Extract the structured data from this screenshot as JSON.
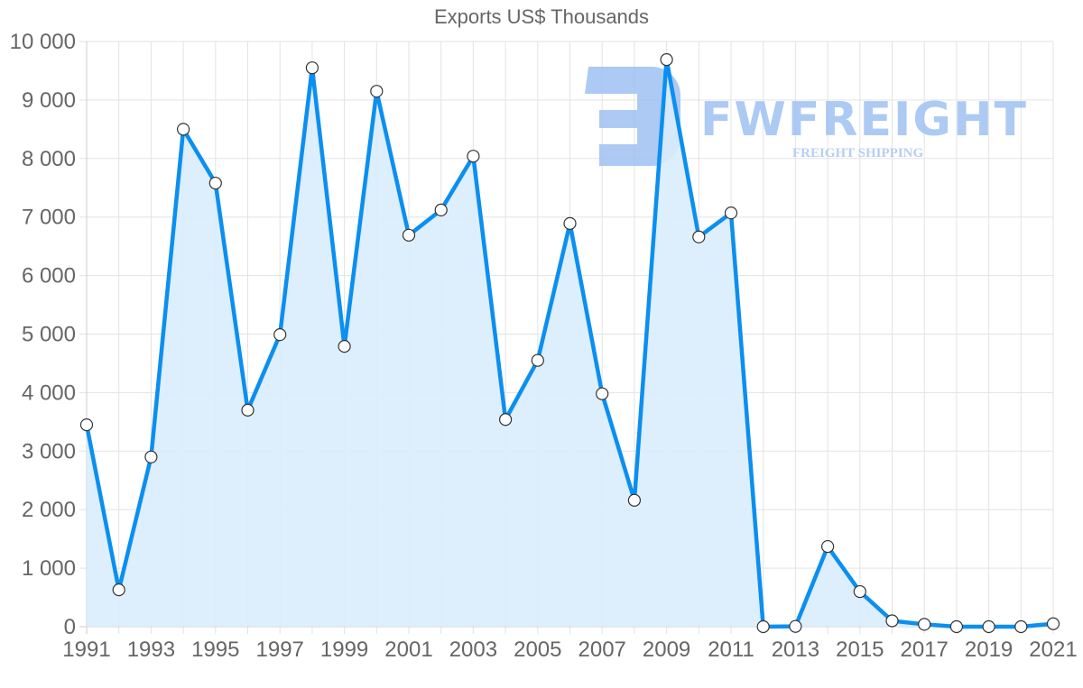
{
  "chart_data": {
    "type": "line",
    "title": "Exports US$ Thousands",
    "xlabel": "",
    "ylabel": "",
    "ylim": [
      0,
      10000
    ],
    "y_ticks": [
      "0",
      "1 000",
      "2 000",
      "3 000",
      "4 000",
      "5 000",
      "6 000",
      "7 000",
      "8 000",
      "9 000",
      "10 000"
    ],
    "x_tick_labels": [
      "1991",
      "1993",
      "1995",
      "1997",
      "1999",
      "2001",
      "2003",
      "2005",
      "2007",
      "2009",
      "2011",
      "2013",
      "2015",
      "2017",
      "2019",
      "2021"
    ],
    "grid": true,
    "legend": null,
    "x": [
      1991,
      1992,
      1993,
      1994,
      1995,
      1996,
      1997,
      1998,
      1999,
      2000,
      2001,
      2002,
      2003,
      2004,
      2005,
      2006,
      2007,
      2008,
      2009,
      2010,
      2011,
      2012,
      2013,
      2014,
      2015,
      2016,
      2017,
      2018,
      2019,
      2020,
      2021
    ],
    "series": [
      {
        "name": "Exports US$ Thousands",
        "color": "#0b8ff0",
        "fill": "#d9ecfc",
        "values": [
          3450,
          630,
          2900,
          8500,
          7580,
          3700,
          4990,
          9550,
          4790,
          9150,
          6690,
          7120,
          8040,
          3540,
          4550,
          6890,
          3980,
          2160,
          9690,
          6660,
          7070,
          0,
          5,
          1370,
          600,
          100,
          40,
          0,
          0,
          0,
          50
        ]
      }
    ]
  },
  "watermark": {
    "brand": "FWFREIGHT",
    "tagline": "FREIGHT SHIPPING"
  }
}
